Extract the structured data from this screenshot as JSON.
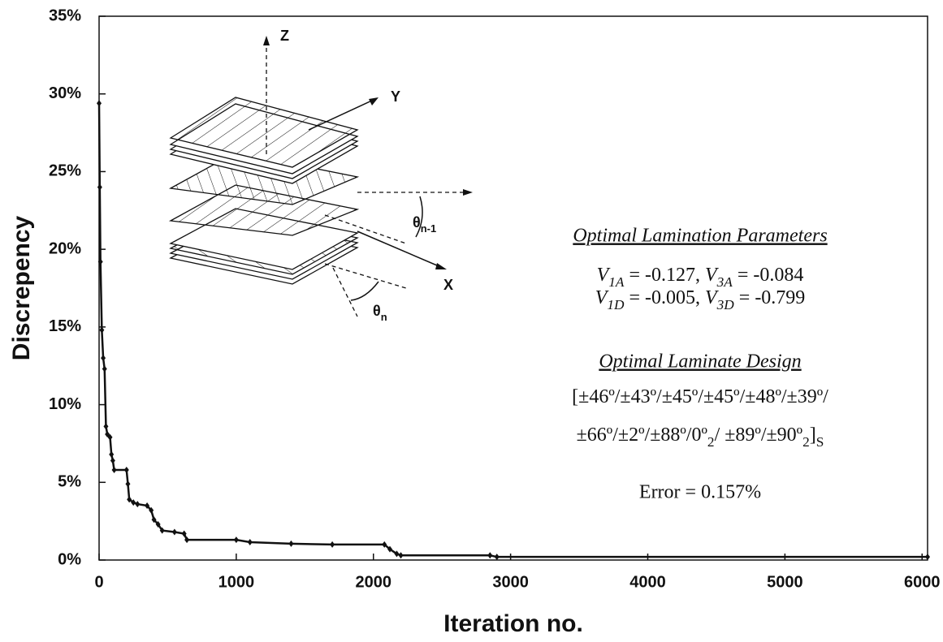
{
  "chart_data": {
    "type": "line",
    "x_label": "Iteration no.",
    "y_label": "Discrepency",
    "color": "#111111",
    "x": [
      0,
      5,
      10,
      20,
      30,
      40,
      50,
      60,
      80,
      90,
      100,
      110,
      200,
      210,
      220,
      250,
      280,
      350,
      380,
      400,
      430,
      460,
      550,
      620,
      640,
      1000,
      1100,
      1400,
      1700,
      2080,
      2120,
      2170,
      2200,
      2850,
      2900,
      6040
    ],
    "values": [
      29.4,
      24,
      19.2,
      14.8,
      13,
      12.3,
      8.6,
      8.1,
      7.9,
      6.8,
      6.4,
      5.8,
      5.8,
      4.9,
      3.9,
      3.7,
      3.6,
      3.5,
      3.2,
      2.6,
      2.3,
      1.9,
      1.8,
      1.7,
      1.3,
      1.3,
      1.15,
      1.05,
      1.0,
      1.0,
      0.7,
      0.4,
      0.3,
      0.3,
      0.2,
      0.2
    ],
    "xlim": [
      0,
      6040
    ],
    "xticks": [
      0,
      1000,
      2000,
      3000,
      4000,
      5000,
      6000
    ],
    "ylim": [
      0,
      35
    ],
    "yticks": [
      {
        "value": 0,
        "label": "0%"
      },
      {
        "value": 5,
        "label": "5%"
      },
      {
        "value": 10,
        "label": "10%"
      },
      {
        "value": 15,
        "label": "15%"
      },
      {
        "value": 20,
        "label": "20%"
      },
      {
        "value": 25,
        "label": "25%"
      },
      {
        "value": 30,
        "label": "30%"
      },
      {
        "value": 35,
        "label": "35%"
      }
    ],
    "annotations": {
      "params_title": "Optimal Lamination Parameters",
      "params_lines": [
        [
          {
            "text": "V",
            "italic": true
          },
          {
            "text": "1A",
            "sub": true,
            "italic": true
          },
          {
            "text": " = -0.127, "
          },
          {
            "text": "V",
            "italic": true
          },
          {
            "text": "3A",
            "sub": true,
            "italic": true
          },
          {
            "text": " = -0.084"
          }
        ],
        [
          {
            "text": "V",
            "italic": true
          },
          {
            "text": "1D",
            "sub": true,
            "italic": true
          },
          {
            "text": " = -0.005, "
          },
          {
            "text": "V",
            "italic": true
          },
          {
            "text": "3D",
            "sub": true,
            "italic": true
          },
          {
            "text": " = -0.799"
          }
        ]
      ],
      "design_title": "Optimal Laminate Design",
      "design_lines": [
        [
          {
            "text": "[±46º/±43º/±45º/±45º/±48º/±39º/"
          }
        ],
        [
          {
            "text": "±66º/±2º/±88º/0º"
          },
          {
            "text": "2",
            "sub": true
          },
          {
            "text": "/ ±89º/±90º"
          },
          {
            "text": "2",
            "sub": true
          },
          {
            "text": "]"
          },
          {
            "text": "S",
            "sub": true
          }
        ]
      ],
      "error": "Error = 0.157%"
    }
  },
  "diagram": {
    "z": "Z",
    "y": "Y",
    "x": "X",
    "theta_n1": [
      {
        "text": "θ"
      },
      {
        "text": "n-1",
        "sub": true
      }
    ],
    "theta_n": [
      {
        "text": "θ"
      },
      {
        "text": "n",
        "sub": true
      }
    ]
  }
}
